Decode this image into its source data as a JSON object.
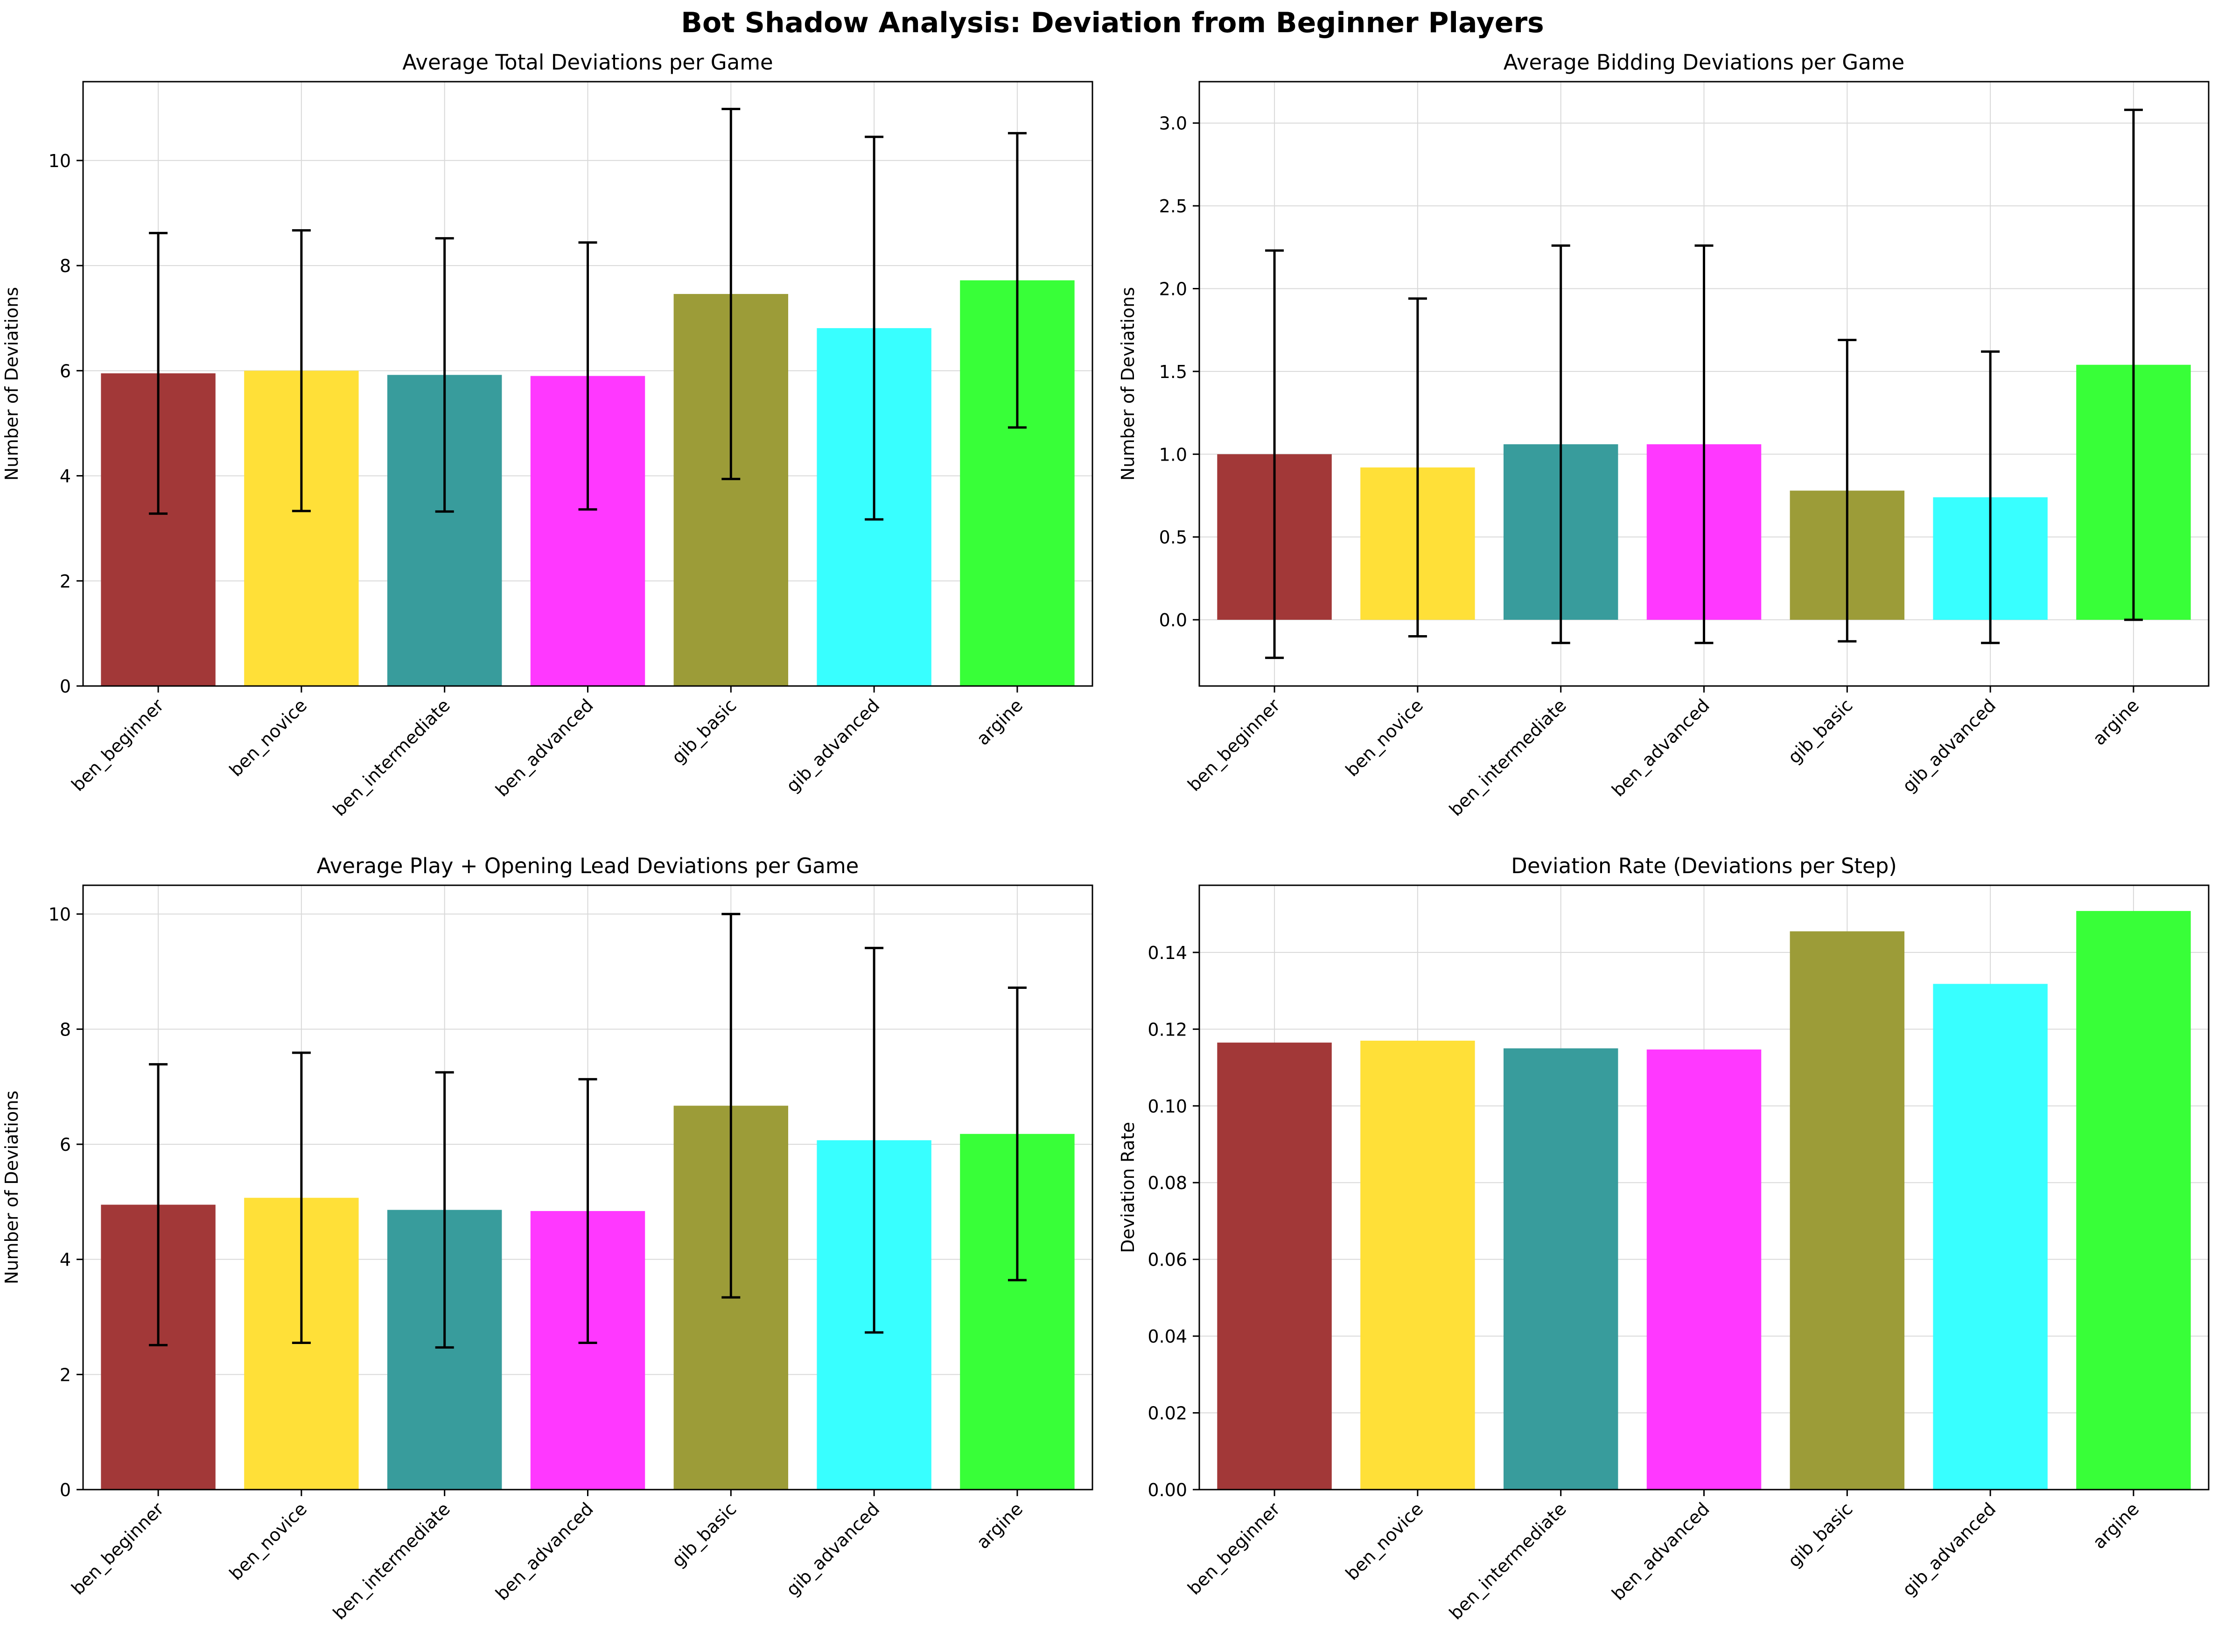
{
  "figure": {
    "title": "Bot Shadow Analysis: Deviation from Beginner Players"
  },
  "colors": [
    "#a03434",
    "#ffdf34",
    "#349a9a",
    "#ff34ff",
    "#9a9a34",
    "#34ffff",
    "#34ff34"
  ],
  "chart_data": [
    {
      "type": "bar",
      "title": "Average Total Deviations per Game",
      "xlabel": "",
      "ylabel": "Number of Deviations",
      "categories": [
        "ben_beginner",
        "ben_novice",
        "ben_intermediate",
        "ben_advanced",
        "gib_basic",
        "gib_advanced",
        "argine"
      ],
      "values": [
        5.95,
        6.0,
        5.92,
        5.9,
        7.46,
        6.81,
        7.72
      ],
      "errors": [
        2.67,
        2.67,
        2.6,
        2.54,
        3.52,
        3.64,
        2.8
      ],
      "ylim": [
        0,
        11.5
      ],
      "yticks": [
        0,
        2,
        4,
        6,
        8,
        10
      ],
      "grid": true
    },
    {
      "type": "bar",
      "title": "Average Bidding Deviations per Game",
      "xlabel": "",
      "ylabel": "Number of Deviations",
      "categories": [
        "ben_beginner",
        "ben_novice",
        "ben_intermediate",
        "ben_advanced",
        "gib_basic",
        "gib_advanced",
        "argine"
      ],
      "values": [
        1.0,
        0.92,
        1.06,
        1.06,
        0.78,
        0.74,
        1.54
      ],
      "errors": [
        1.23,
        1.02,
        1.2,
        1.2,
        0.91,
        0.88,
        1.54
      ],
      "ylim": [
        -0.4,
        3.25
      ],
      "yticks": [
        "0.0",
        "0.5",
        "1.0",
        "1.5",
        "2.0",
        "2.5",
        "3.0"
      ],
      "grid": true
    },
    {
      "type": "bar",
      "title": "Average Play + Opening Lead Deviations per Game",
      "xlabel": "",
      "ylabel": "Number of Deviations",
      "categories": [
        "ben_beginner",
        "ben_novice",
        "ben_intermediate",
        "ben_advanced",
        "gib_basic",
        "gib_advanced",
        "argine"
      ],
      "values": [
        4.95,
        5.07,
        4.86,
        4.84,
        6.67,
        6.07,
        6.18
      ],
      "errors": [
        2.44,
        2.52,
        2.39,
        2.29,
        3.33,
        3.34,
        2.54
      ],
      "ylim": [
        0,
        10.5
      ],
      "yticks": [
        0,
        2,
        4,
        6,
        8,
        10
      ],
      "grid": true
    },
    {
      "type": "bar",
      "title": "Deviation Rate (Deviations per Step)",
      "xlabel": "",
      "ylabel": "Deviation Rate",
      "categories": [
        "ben_beginner",
        "ben_novice",
        "ben_intermediate",
        "ben_advanced",
        "gib_basic",
        "gib_advanced",
        "argine"
      ],
      "values": [
        0.1165,
        0.117,
        0.115,
        0.1147,
        0.1455,
        0.1318,
        0.1508
      ],
      "ylim": [
        0,
        0.1575
      ],
      "yticks": [
        "0.00",
        "0.02",
        "0.04",
        "0.06",
        "0.08",
        "0.10",
        "0.12",
        "0.14"
      ],
      "grid": true
    }
  ]
}
